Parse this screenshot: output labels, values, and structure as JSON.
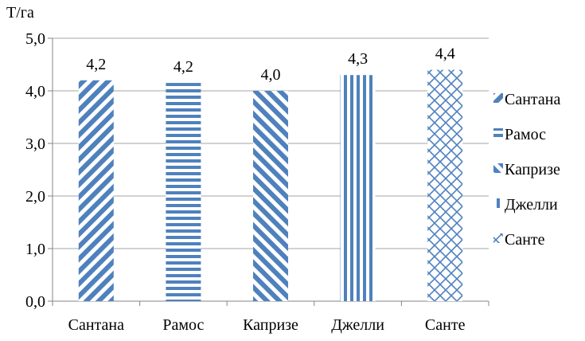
{
  "chart_data": {
    "type": "bar",
    "title": "",
    "ylabel": "Т/га",
    "xlabel": "",
    "categories": [
      "Сантана",
      "Рамос",
      "Капризе",
      "Джелли",
      "Санте"
    ],
    "values": [
      4.2,
      4.15,
      4.0,
      4.3,
      4.4
    ],
    "data_labels": [
      "4,2",
      "4,2",
      "4,0",
      "4,3",
      "4,4"
    ],
    "ylim": [
      0,
      5
    ],
    "yticks": [
      0,
      1,
      2,
      3,
      4,
      5
    ],
    "ytick_labels": [
      "0,0",
      "1,0",
      "2,0",
      "3,0",
      "4,0",
      "5,0"
    ],
    "grid": true,
    "legend_position": "right",
    "legend": [
      "Сантана",
      "Рамос",
      "Капризе",
      "Джелли",
      "Санте"
    ],
    "bar_patterns": [
      "diagonal-down",
      "horizontal",
      "diagonal-up",
      "vertical",
      "diagonal-cross"
    ],
    "colors": {
      "bar": "#4f81bd",
      "grid": "#a6a6a6",
      "axis": "#868686",
      "background": "#ffffff"
    }
  }
}
